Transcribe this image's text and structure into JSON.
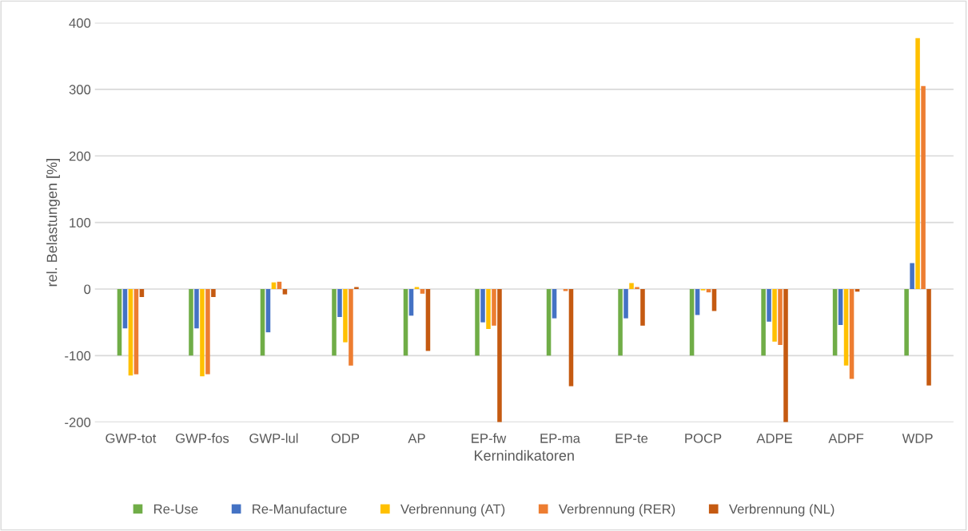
{
  "chart_data": {
    "type": "bar",
    "xlabel": "Kernindikatoren",
    "ylabel": "rel. Belastungen [%]",
    "categories": [
      "GWP-tot",
      "GWP-fos",
      "GWP-lul",
      "ODP",
      "AP",
      "EP-fw",
      "EP-ma",
      "EP-te",
      "POCP",
      "ADPE",
      "ADPF",
      "WDP"
    ],
    "series": [
      {
        "name": "Re-Use",
        "color": "#70ad47",
        "values": [
          -100,
          -100,
          -100,
          -100,
          -100,
          -100,
          -100,
          -100,
          -100,
          -100,
          -100,
          -100
        ]
      },
      {
        "name": "Re-Manufacture",
        "color": "#4472c4",
        "values": [
          -59,
          -59,
          -65,
          -42,
          -40,
          -50,
          -44,
          -44,
          -39,
          -49,
          -54,
          39
        ]
      },
      {
        "name": "Verbrennung (AT)",
        "color": "#ffc000",
        "values": [
          -130,
          -131,
          10,
          -80,
          3,
          -60,
          0,
          9,
          -2,
          -79,
          -115,
          377
        ]
      },
      {
        "name": "Verbrennung (RER)",
        "color": "#ed7d31",
        "values": [
          -128,
          -128,
          11,
          -115,
          -7,
          -55,
          -3,
          3,
          -5,
          -84,
          -135,
          305
        ]
      },
      {
        "name": "Verbrennung (NL)",
        "color": "#c55a11",
        "values": [
          -12,
          -12,
          -8,
          3,
          -93,
          -200,
          -146,
          -55,
          -33,
          -200,
          -4,
          -145
        ]
      }
    ],
    "ylim": [
      -200,
      400
    ],
    "yticks": [
      -200,
      -100,
      0,
      100,
      200,
      300,
      400
    ],
    "grid": "y",
    "legend": "bottom"
  }
}
